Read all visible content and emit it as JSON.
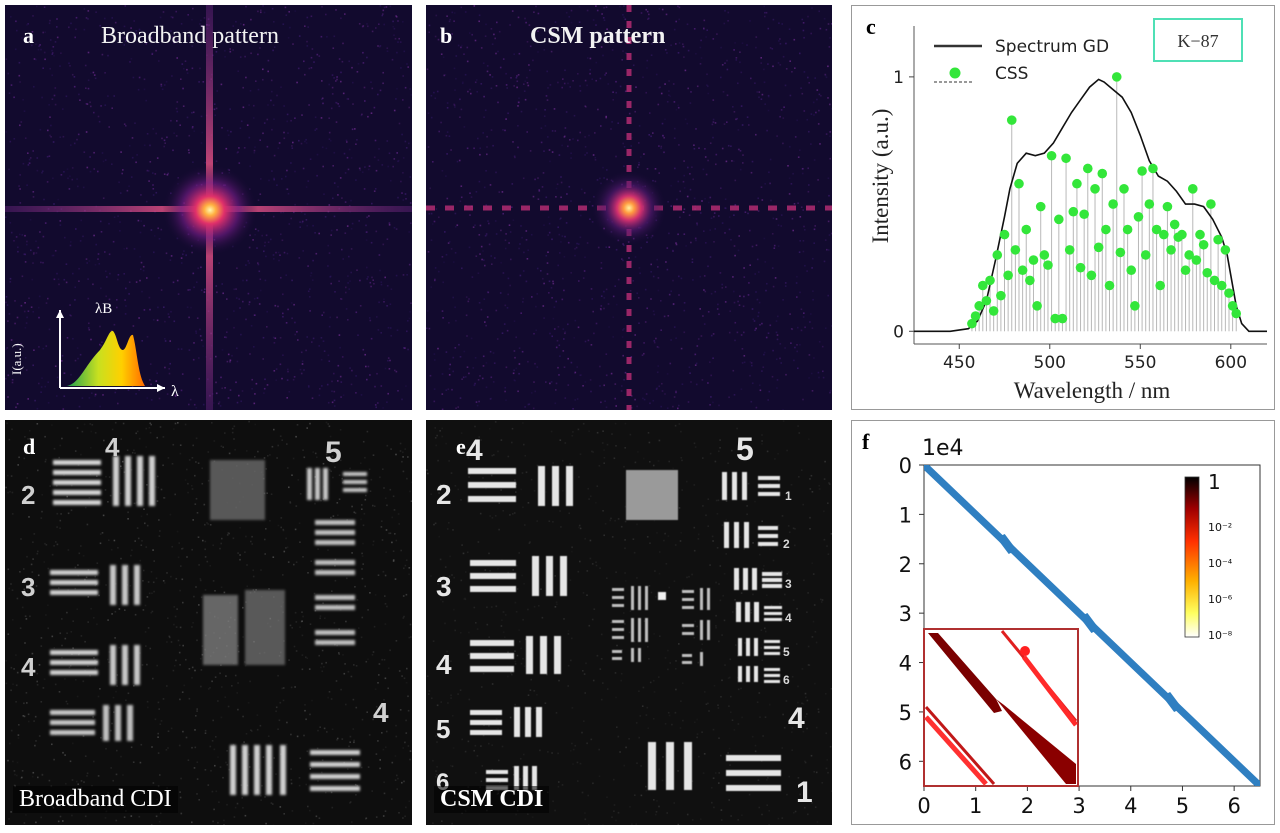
{
  "panel_a": {
    "letter": "a",
    "title": "Broadband pattern",
    "inset": {
      "peak_label": "λB",
      "y_label": "I(a.u.)",
      "x_label": "λ"
    }
  },
  "panel_b": {
    "letter": "b",
    "title": "CSM pattern"
  },
  "panel_c": {
    "letter": "c",
    "badge": "K−87",
    "chart_data": {
      "type": "line",
      "title": "",
      "xlabel": "Wavelength / nm",
      "ylabel": "Intensity (a.u.)",
      "xlim": [
        425,
        620
      ],
      "ylim": [
        -0.05,
        1.2
      ],
      "xticks": [
        "450",
        "500",
        "550",
        "600"
      ],
      "yticks": [
        "0",
        "1"
      ],
      "legend": [
        "Spectrum GD",
        "CSS"
      ],
      "legend_position": "top-left",
      "series": [
        {
          "name": "Spectrum GD",
          "x": [
            425,
            445,
            455,
            460,
            465,
            470,
            475,
            478,
            482,
            487,
            492,
            497,
            502,
            507,
            512,
            517,
            522,
            527,
            530,
            535,
            540,
            545,
            550,
            555,
            560,
            565,
            570,
            575,
            580,
            585,
            590,
            595,
            598,
            600,
            603,
            606,
            610,
            620
          ],
          "values": [
            0,
            0,
            0.01,
            0.04,
            0.12,
            0.28,
            0.45,
            0.56,
            0.66,
            0.7,
            0.69,
            0.7,
            0.74,
            0.8,
            0.86,
            0.91,
            0.96,
            0.99,
            0.98,
            0.95,
            0.92,
            0.86,
            0.77,
            0.67,
            0.61,
            0.59,
            0.55,
            0.5,
            0.5,
            0.49,
            0.44,
            0.37,
            0.3,
            0.22,
            0.1,
            0.03,
            0,
            0
          ]
        },
        {
          "name": "CSS",
          "x": [
            457,
            459,
            461,
            463,
            465,
            467,
            469,
            471,
            473,
            475,
            477,
            479,
            481,
            483,
            485,
            487,
            489,
            491,
            493,
            495,
            497,
            499,
            501,
            503,
            505,
            507,
            509,
            511,
            513,
            515,
            517,
            519,
            521,
            523,
            525,
            527,
            529,
            531,
            533,
            535,
            537,
            539,
            541,
            543,
            545,
            547,
            549,
            551,
            553,
            555,
            557,
            559,
            561,
            563,
            565,
            567,
            569,
            571,
            573,
            575,
            577,
            579,
            581,
            583,
            585,
            587,
            589,
            591,
            593,
            595,
            597,
            599,
            601,
            603
          ],
          "values": [
            0.03,
            0.06,
            0.1,
            0.18,
            0.12,
            0.2,
            0.08,
            0.3,
            0.14,
            0.38,
            0.22,
            0.83,
            0.32,
            0.58,
            0.24,
            0.4,
            0.2,
            0.28,
            0.1,
            0.49,
            0.3,
            0.26,
            0.69,
            0.05,
            0.44,
            0.05,
            0.68,
            0.32,
            0.47,
            0.58,
            0.25,
            0.46,
            0.64,
            0.22,
            0.56,
            0.33,
            0.62,
            0.4,
            0.18,
            0.5,
            1.0,
            0.31,
            0.56,
            0.4,
            0.24,
            0.1,
            0.45,
            0.63,
            0.3,
            0.5,
            0.64,
            0.4,
            0.18,
            0.38,
            0.49,
            0.32,
            0.42,
            0.37,
            0.38,
            0.24,
            0.3,
            0.56,
            0.28,
            0.38,
            0.34,
            0.23,
            0.5,
            0.2,
            0.36,
            0.18,
            0.32,
            0.15,
            0.1,
            0.07
          ]
        }
      ]
    }
  },
  "panel_d": {
    "letter": "d",
    "caption": "Broadband CDI",
    "group_labels": [
      "4",
      "5",
      "2",
      "3",
      "4",
      "4"
    ]
  },
  "panel_e": {
    "letter": "e",
    "caption": "CSM CDI",
    "group_labels": [
      "4",
      "5",
      "2",
      "3",
      "4",
      "5",
      "6",
      "4",
      "1"
    ],
    "element_labels": [
      "1",
      "2",
      "3",
      "4",
      "5",
      "6"
    ]
  },
  "panel_f": {
    "letter": "f",
    "offset_label": "1e4",
    "chart_data": {
      "type": "heatmap",
      "x_ticks": [
        "0",
        "1",
        "2",
        "3",
        "4",
        "5",
        "6"
      ],
      "y_ticks": [
        "0",
        "1",
        "2",
        "3",
        "4",
        "5",
        "6"
      ],
      "xlim": [
        0,
        6.5
      ],
      "ylim": [
        6.5,
        0
      ],
      "band_breakpoints": [
        1.6,
        3.2,
        4.8
      ],
      "colorbar_ticks": [
        "1",
        "10⁻²",
        "10⁻⁴",
        "10⁻⁶",
        "10⁻⁸"
      ],
      "colorbar_colors": [
        "#000000",
        "#a00000",
        "#ff3000",
        "#ffb000",
        "#ffff60",
        "#ffffff"
      ]
    }
  }
}
